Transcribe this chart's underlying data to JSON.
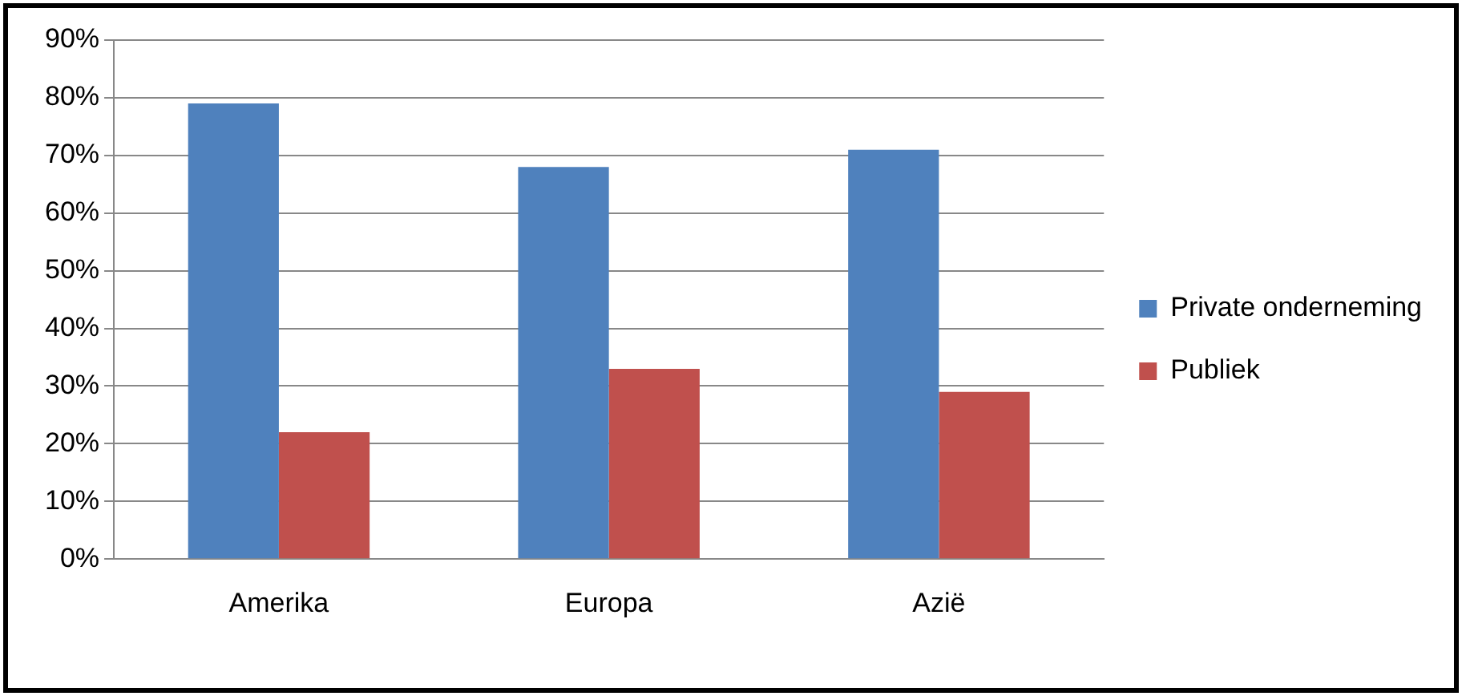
{
  "chart_data": {
    "type": "bar",
    "categories": [
      "Amerika",
      "Europa",
      "Azië"
    ],
    "series": [
      {
        "name": "Private onderneming",
        "color": "#4f81bd",
        "values": [
          79,
          68,
          71
        ]
      },
      {
        "name": "Publiek",
        "color": "#c0504d",
        "values": [
          22,
          33,
          29
        ]
      }
    ],
    "ylim": [
      0,
      90
    ],
    "yticks": [
      {
        "value": 0,
        "label": "0%"
      },
      {
        "value": 10,
        "label": "10%"
      },
      {
        "value": 20,
        "label": "20%"
      },
      {
        "value": 30,
        "label": "30%"
      },
      {
        "value": 40,
        "label": "40%"
      },
      {
        "value": 50,
        "label": "50%"
      },
      {
        "value": 60,
        "label": "60%"
      },
      {
        "value": 70,
        "label": "70%"
      },
      {
        "value": 80,
        "label": "80%"
      },
      {
        "value": 90,
        "label": "90%"
      }
    ],
    "grid": "y",
    "legend": "right"
  }
}
